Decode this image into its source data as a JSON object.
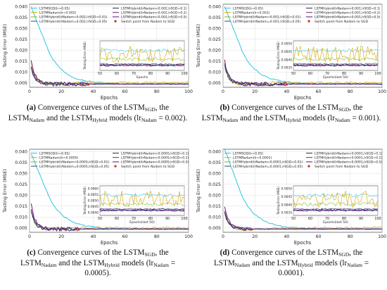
{
  "colors": {
    "sgd": "#2ec4e6",
    "nadam": "#d9a300",
    "h1": "#8fbf2a",
    "h2": "#2f4f6f",
    "h3": "#1f2f4f",
    "h4": "#7a1a6a",
    "h5": "#4b2a8c",
    "switch": "#e0231c"
  },
  "panels": [
    {
      "caption": {
        "label": "(a)",
        "line1": " Convergence curves of the LSTM",
        "sub1": "SGD",
        "line1b": ", the",
        "line2": "LSTM",
        "sub2": "Nadam",
        "line2b": " and the LSTM",
        "sub3": "Hybrid",
        "line2c": " models (lr",
        "sub4": "Nadam",
        "line2d": " = 0.002)."
      },
      "chart_data": {
        "type": "line",
        "ylabel": "Testing Error (MSE)",
        "xlabel": "Epochs",
        "xlim": [
          0,
          100
        ],
        "ylim": [
          0.003,
          0.041
        ],
        "yticks": [
          "0.040",
          "0.035",
          "0.030",
          "0.025",
          "0.020",
          "0.015",
          "0.010",
          "0.005"
        ],
        "xticks": [
          "0",
          "20",
          "40",
          "60",
          "80",
          "100"
        ],
        "legend": [
          "LSTMSGD(lr=0.05)",
          "LSTMNadam(lr=0.002)",
          "LSTMHybrid(lrNadam=0.002,lrSGD=0.01)",
          "LSTMHybrid(lrNadam=0.002,lrSGD=0.05)",
          "LSTMHybrid(lrNadam=0.002,lrSGD=0.1)",
          "LSTMHybrid(lrNadam=0.002,lrSGD=0.2)",
          "LSTMHybrid(lrNadam=0.002,lrSGD=0.5)",
          "Switch point from Nadam to SGD"
        ],
        "sgd_start": 0.04,
        "switch_x": 37,
        "inset": {
          "xlabel": "Epochs",
          "ylabel": "Testing Error (MSE)",
          "xticks": [
            "50",
            "60",
            "70",
            "80",
            "90",
            "100"
          ],
          "yticks": []
        }
      }
    },
    {
      "caption": {
        "label": "(b)",
        "line1": " Convergence curves of the LSTM",
        "sub1": "SGD",
        "line1b": ", the",
        "line2": "LSTM",
        "sub2": "Nadam",
        "line2b": " and the LSTM",
        "sub3": "Hybrid",
        "line2c": " models (lr",
        "sub4": "Nadam",
        "line2d": " = 0.001)."
      },
      "chart_data": {
        "type": "line",
        "ylabel": "Testing Error (MSE)",
        "xlabel": "Epochs",
        "xlim": [
          0,
          100
        ],
        "ylim": [
          0.003,
          0.041
        ],
        "yticks": [
          "0.040",
          "0.035",
          "0.030",
          "0.025",
          "0.020",
          "0.015",
          "0.010",
          "0.005"
        ],
        "xticks": [
          "0",
          "20",
          "40",
          "60",
          "80",
          "100"
        ],
        "legend": [
          "LSTMSGD(lr=0.05)",
          "LSTMNadam(lr=0.001)",
          "LSTMHybrid(lrNadam=0.001,lrSGD=0.01)",
          "LSTMHybrid(lrNadam=0.001,lrSGD=0.05)",
          "LSTMHybrid(lrNadam=0.001,lrSGD=0.1)",
          "LSTMHybrid(lrNadam=0.001,lrSGD=0.2)",
          "LSTMHybrid(lrNadam=0.001,lrSGD=0.5)",
          "Switch point from Nadam to SGD"
        ],
        "sgd_start": 0.04,
        "switch_x": 40,
        "inset": {
          "xlabel": "Epochs(last 50)",
          "ylabel": "Testing Error (MSE)",
          "xticks": [
            "50",
            "60",
            "70",
            "80",
            "90",
            "100"
          ],
          "yticks": [
            "0.0050",
            "0.0045",
            "0.0040",
            "0.0035"
          ]
        }
      }
    },
    {
      "caption": {
        "label": "(c)",
        "line1": " Convergence curves of the LSTM",
        "sub1": "SGD",
        "line1b": ", the",
        "line2": "LSTM",
        "sub2": "Nadam",
        "line2b": " and the LSTM",
        "sub3": "Hybrid",
        "line2c": " models (lr",
        "sub4": "Nadam",
        "line2d": " =",
        "line3": "0.0005)."
      },
      "chart_data": {
        "type": "line",
        "ylabel": "Testing Error (MSE)",
        "xlabel": "Epochs",
        "xlim": [
          0,
          100
        ],
        "ylim": [
          0.003,
          0.041
        ],
        "yticks": [
          "0.040",
          "0.035",
          "0.030",
          "0.025",
          "0.020",
          "0.015",
          "0.010",
          "0.005"
        ],
        "xticks": [
          "0",
          "20",
          "40",
          "60",
          "80",
          "100"
        ],
        "legend": [
          "LSTMSGD(lr=0.05)",
          "LSTMNadam(lr=0.0005)",
          "LSTMHybrid(lrNadam=0.0005,lrSGD=0.01)",
          "LSTMHybrid(lrNadam=0.0005,lrSGD=0.05)",
          "LSTMHybrid(lrNadam=0.0005,lrSGD=0.1)",
          "LSTMHybrid(lrNadam=0.0005,lrSGD=0.2)",
          "LSTMHybrid(lrNadam=0.0005,lrSGD=0.5)",
          "Switch point from Nadam to SGD"
        ],
        "sgd_start": 0.039,
        "switch_x": 31,
        "inset": {
          "xlabel": "Epochs(last 50)",
          "ylabel": "Testing Error (MSE)",
          "xticks": [
            "50",
            "60",
            "70",
            "80",
            "90",
            "100"
          ],
          "yticks": [
            "0.0060",
            "0.0055",
            "0.0050",
            "0.0045",
            "0.0040"
          ]
        }
      }
    },
    {
      "caption": {
        "label": "(d)",
        "line1": " Convergence curves of the LSTM",
        "sub1": "SGD",
        "line1b": ", the",
        "line2": "LSTM",
        "sub2": "Nadam",
        "line2b": " and the LSTM",
        "sub3": "Hybrid",
        "line2c": " models (lr",
        "sub4": "Nadam",
        "line2d": " =",
        "line3": "0.0001)."
      },
      "chart_data": {
        "type": "line",
        "ylabel": "Testing Error (MSE)",
        "xlabel": "Epochs",
        "xlim": [
          0,
          100
        ],
        "ylim": [
          0.003,
          0.041
        ],
        "yticks": [
          "0.040",
          "0.035",
          "0.030",
          "0.025",
          "0.020",
          "0.015",
          "0.010",
          "0.005"
        ],
        "xticks": [
          "0",
          "20",
          "40",
          "60",
          "80",
          "100"
        ],
        "legend": [
          "LSTMSGD(lr=0.05)",
          "LSTMNadam(lr=0.0001)",
          "LSTMHybrid(lrNadam=0.0001,lrSGD=0.01)",
          "LSTMHybrid(lrNadam=0.0001,lrSGD=0.05)",
          "LSTMHybrid(lrNadam=0.0001,lrSGD=0.1)",
          "LSTMHybrid(lrNadam=0.0001,lrSGD=0.2)",
          "LSTMHybrid(lrNadam=0.0001,lrSGD=0.5)",
          "Switch point from Nadam to SGD"
        ],
        "sgd_start": 0.041,
        "switch_x": 18,
        "inset": {
          "xlabel": "Epochs(last 50)",
          "ylabel": "Testing Error (MSE)",
          "xticks": [
            "50",
            "60",
            "70",
            "80",
            "90",
            "100"
          ],
          "yticks": [
            "0.0050",
            "0.0045",
            "0.0040",
            "0.0035"
          ]
        }
      }
    }
  ]
}
